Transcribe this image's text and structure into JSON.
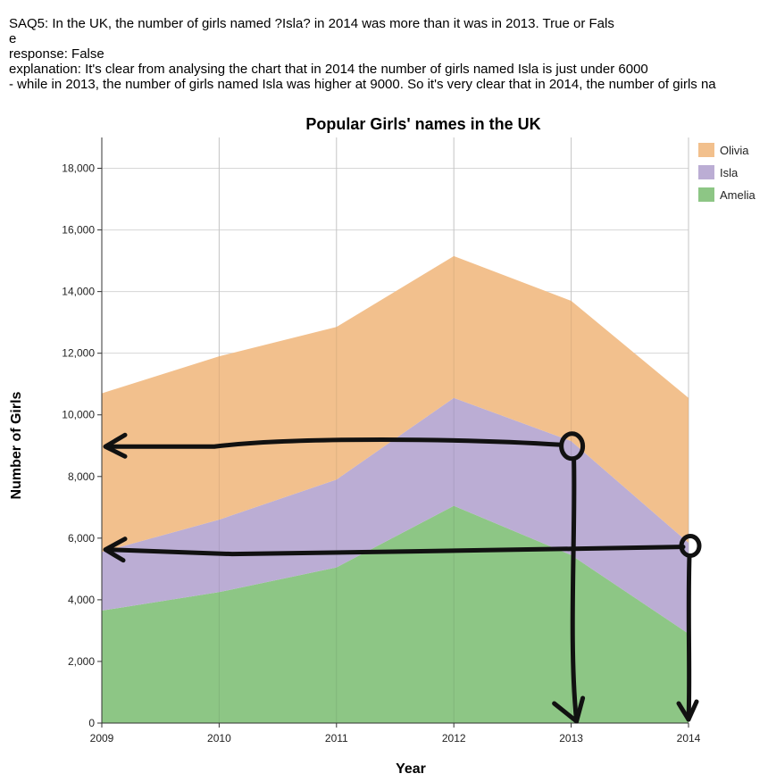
{
  "qa": {
    "question": "SAQ5: In the UK, the number of girls named ?Isla? in 2014 was more than it was in 2013. True or Fals",
    "question_wrap": "e",
    "response": "response: False",
    "explanation_1": "explanation: It's  clear from analysing the chart that  in 2014 the number of girls named Isla is just under 6000",
    "explanation_2": " - while in 2013, the number of girls named  Isla was higher at 9000.   So it's very clear that in 2014, the number of girls na"
  },
  "colors": {
    "olivia": "#f2c08d",
    "isla": "#bbadd4",
    "amelia": "#8dc685",
    "grid": "#d6d6d6",
    "annotation": "#111111"
  },
  "chart_data": {
    "type": "area",
    "stacked": true,
    "title": "Popular Girls' names in the UK",
    "xlabel": "Year",
    "ylabel": "Number of Girls",
    "x": [
      2009,
      2010,
      2011,
      2012,
      2013,
      2014
    ],
    "xticks": [
      "2009",
      "2010",
      "2011",
      "2012",
      "2013",
      "2014"
    ],
    "yticks": [
      "0",
      "2,000",
      "4,000",
      "6,000",
      "8,000",
      "10,000",
      "12,000",
      "14,000",
      "16,000",
      "18,000"
    ],
    "ylim": [
      0,
      19000
    ],
    "grid": true,
    "legend_position": "top-right",
    "series": [
      {
        "name": "Amelia",
        "values": [
          3650,
          4250,
          5050,
          7050,
          5450,
          2900
        ]
      },
      {
        "name": "Isla",
        "values": [
          1900,
          2350,
          2850,
          3500,
          3700,
          2950
        ]
      },
      {
        "name": "Olivia",
        "values": [
          5150,
          5300,
          4950,
          4600,
          4550,
          4700
        ]
      }
    ],
    "legend": [
      "Olivia",
      "Isla",
      "Amelia"
    ],
    "annotations": {
      "type": "handwritten-arrows",
      "horizontal_levels": [
        9000,
        5600
      ],
      "circled_points": [
        {
          "x": 2013,
          "y": 9100
        },
        {
          "x": 2014,
          "y": 5750
        }
      ],
      "down_arrows_at": [
        2013,
        2014
      ]
    }
  }
}
